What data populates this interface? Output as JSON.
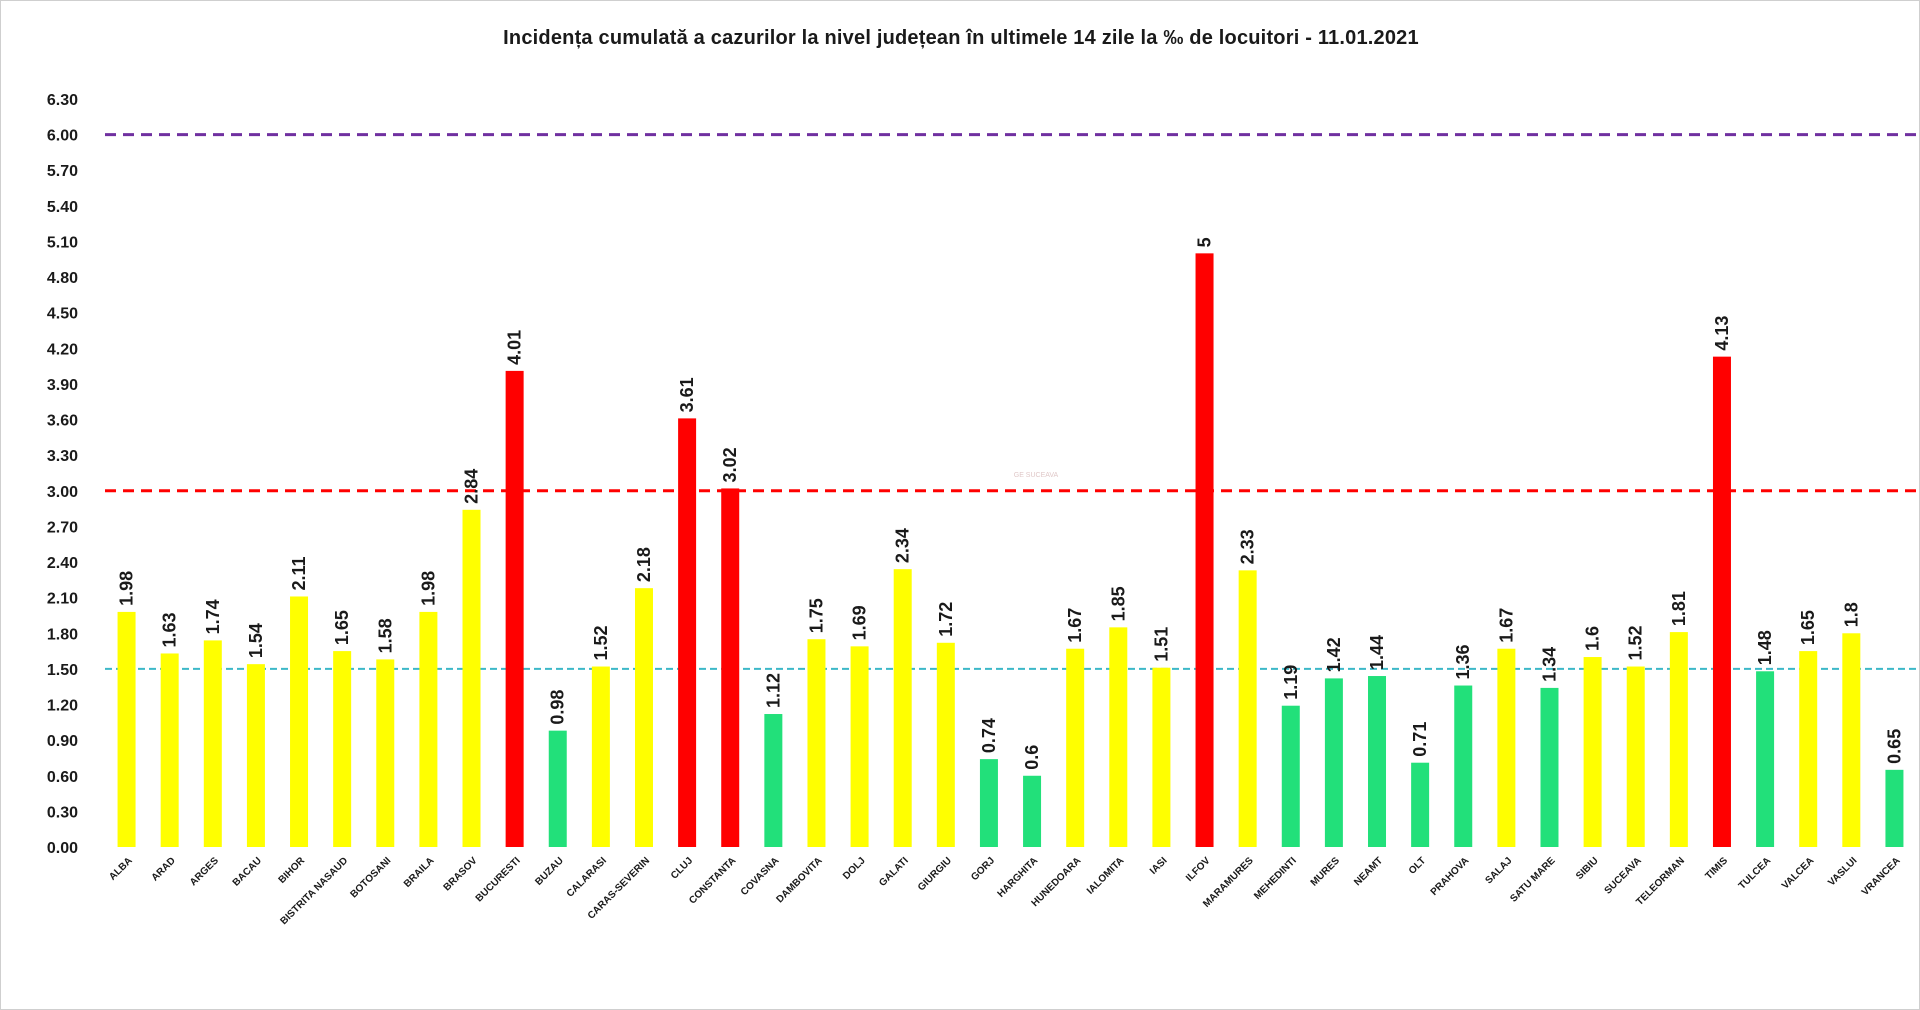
{
  "chart_data": {
    "type": "bar",
    "title": "Incidența cumulată a cazurilor la nivel județean în ultimele 14 zile la ‰ de locuitori - 11.01.2021",
    "xlabel": "",
    "ylabel": "",
    "ylim": [
      0,
      6.3
    ],
    "yticks": [
      "0.00",
      "0.30",
      "0.60",
      "0.90",
      "1.20",
      "1.50",
      "1.80",
      "2.10",
      "2.40",
      "2.70",
      "3.00",
      "3.30",
      "3.60",
      "3.90",
      "4.20",
      "4.50",
      "4.80",
      "5.10",
      "5.40",
      "5.70",
      "6.00",
      "6.30"
    ],
    "grid": false,
    "legend": "none",
    "categories": [
      "ALBA",
      "ARAD",
      "ARGES",
      "BACAU",
      "BIHOR",
      "BISTRITA NASAUD",
      "BOTOSANI",
      "BRAILA",
      "BRASOV",
      "BUCURESTI",
      "BUZAU",
      "CALARASI",
      "CARAS-SEVERIN",
      "CLUJ",
      "CONSTANTA",
      "COVASNA",
      "DAMBOVITA",
      "DOLJ",
      "GALATI",
      "GIURGIU",
      "GORJ",
      "HARGHITA",
      "HUNEDOARA",
      "IALOMITA",
      "IASI",
      "ILFOV",
      "MARAMURES",
      "MEHEDINTI",
      "MURES",
      "NEAMT",
      "OLT",
      "PRAHOVA",
      "SALAJ",
      "SATU MARE",
      "SIBIU",
      "SUCEAVA",
      "TELEORMAN",
      "TIMIS",
      "TULCEA",
      "VALCEA",
      "VASLUI",
      "VRANCEA"
    ],
    "values": [
      1.98,
      1.63,
      1.74,
      1.54,
      2.11,
      1.65,
      1.58,
      1.98,
      2.84,
      4.01,
      0.98,
      1.52,
      2.18,
      3.61,
      3.02,
      1.12,
      1.75,
      1.69,
      2.34,
      1.72,
      0.74,
      0.6,
      1.67,
      1.85,
      1.51,
      5,
      2.33,
      1.19,
      1.42,
      1.44,
      0.71,
      1.36,
      1.67,
      1.34,
      1.6,
      1.52,
      1.81,
      4.13,
      1.48,
      1.65,
      1.8,
      0.65
    ],
    "data_labels": [
      "1.98",
      "1.63",
      "1.74",
      "1.54",
      "2.11",
      "1.65",
      "1.58",
      "1.98",
      "2.84",
      "4.01",
      "0.98",
      "1.52",
      "2.18",
      "3.61",
      "3.02",
      "1.12",
      "1.75",
      "1.69",
      "2.34",
      "1.72",
      "0.74",
      "0.6",
      "1.67",
      "1.85",
      "1.51",
      "5",
      "2.33",
      "1.19",
      "1.42",
      "1.44",
      "0.71",
      "1.36",
      "1.67",
      "1.34",
      "1.6",
      "1.52",
      "1.81",
      "4.13",
      "1.48",
      "1.65",
      "1.8",
      "0.65"
    ],
    "bar_colors": {
      "green": "#22e07a",
      "yellow": "#ffff00",
      "red": "#ff0000"
    },
    "thresholds": [
      {
        "value": 6.0,
        "color": "#7030a0"
      },
      {
        "value": 3.0,
        "color": "#ff0000"
      },
      {
        "value": 1.5,
        "color": "#3cb8c8"
      }
    ],
    "watermark": "GE SUCEAVA"
  }
}
